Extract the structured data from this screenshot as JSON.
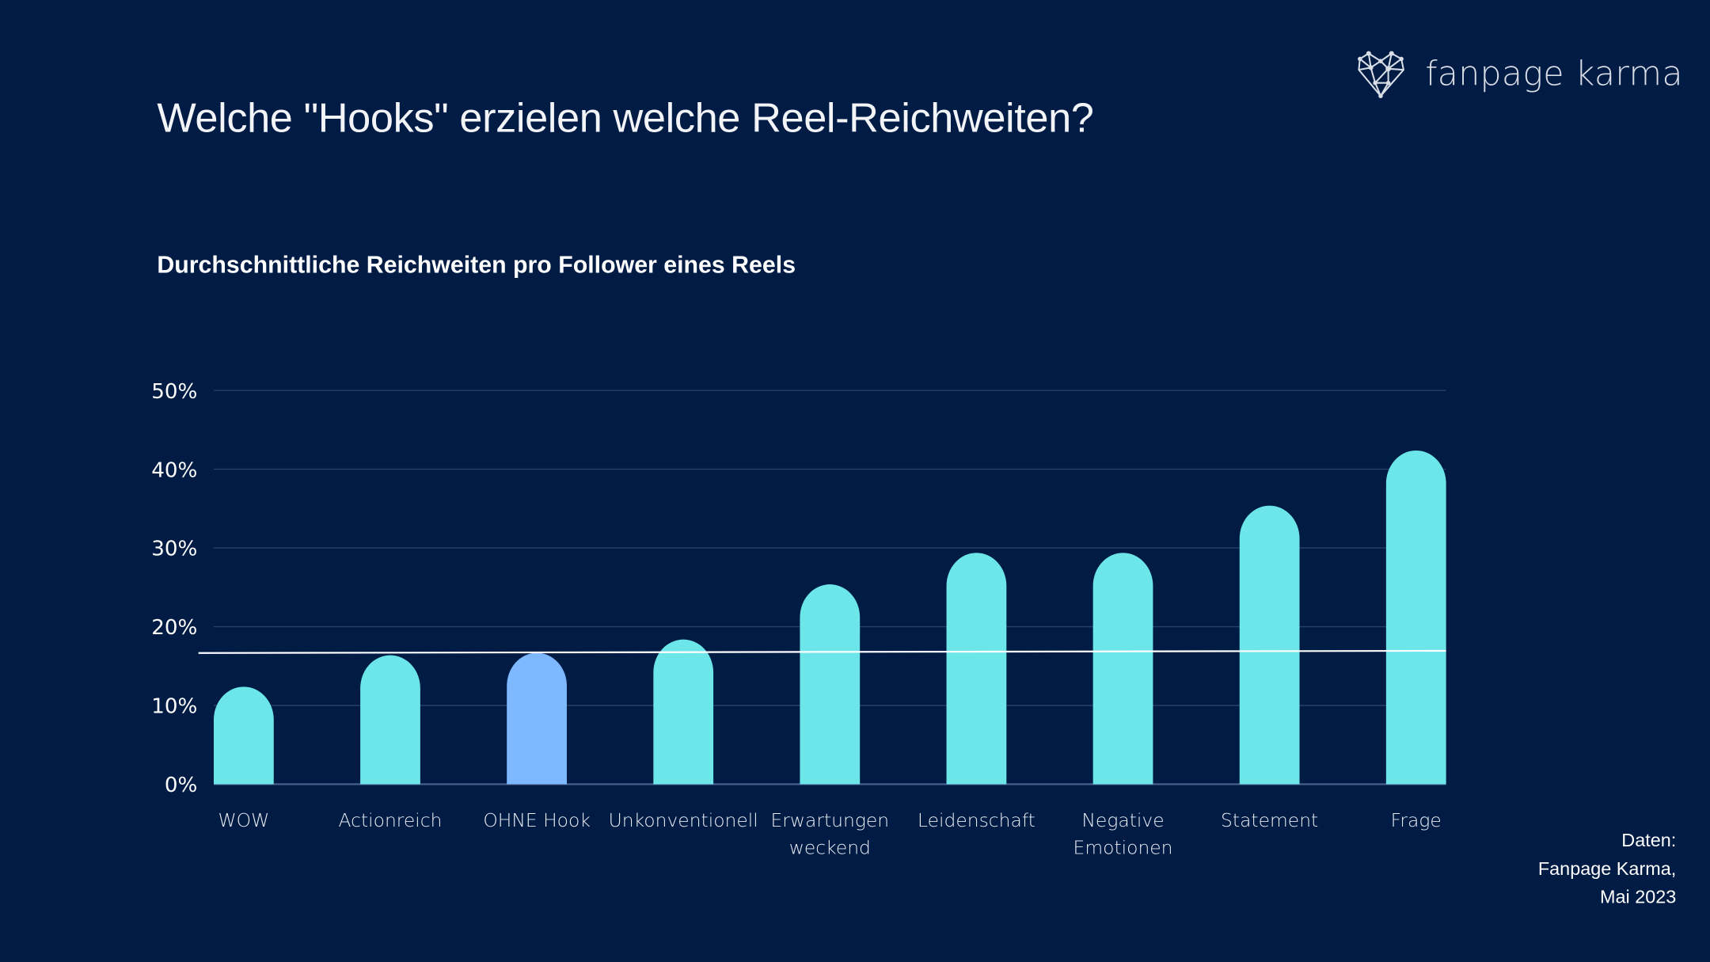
{
  "title": "Welche \"Hooks\" erzielen welche Reel-Reichweiten?",
  "subtitle": "Durchschnittliche Reichweiten pro Follower eines Reels",
  "logo": {
    "text": "fanpage karma",
    "icon": "heart-network-icon"
  },
  "source": {
    "line1": "Daten:",
    "line2": "Fanpage Karma,",
    "line3": "Mai 2023"
  },
  "colors": {
    "background": "#001b44",
    "bar": "#6ce6e8",
    "highlight": "#7eb8ff",
    "average_line": "#ffffff",
    "grid": "#2a3f66"
  },
  "chart_data": {
    "type": "bar",
    "categories": [
      [
        "WOW"
      ],
      [
        "Actionreich"
      ],
      [
        "OHNE Hook"
      ],
      [
        "Unkonventionell"
      ],
      [
        "Erwartungen",
        "weckend"
      ],
      [
        "Leidenschaft"
      ],
      [
        "Negative",
        "Emotionen"
      ],
      [
        "Statement"
      ],
      [
        "Frage"
      ]
    ],
    "values": [
      12,
      16,
      16.3,
      18,
      25,
      29,
      29,
      35,
      42
    ],
    "unit": "%",
    "highlight_index": 2,
    "average_line": 16.8,
    "ylim": [
      0,
      50
    ],
    "yticks": [
      "0%",
      "10%",
      "20%",
      "30%",
      "40%",
      "50%"
    ],
    "grid": true,
    "xlabel": "",
    "ylabel": ""
  }
}
